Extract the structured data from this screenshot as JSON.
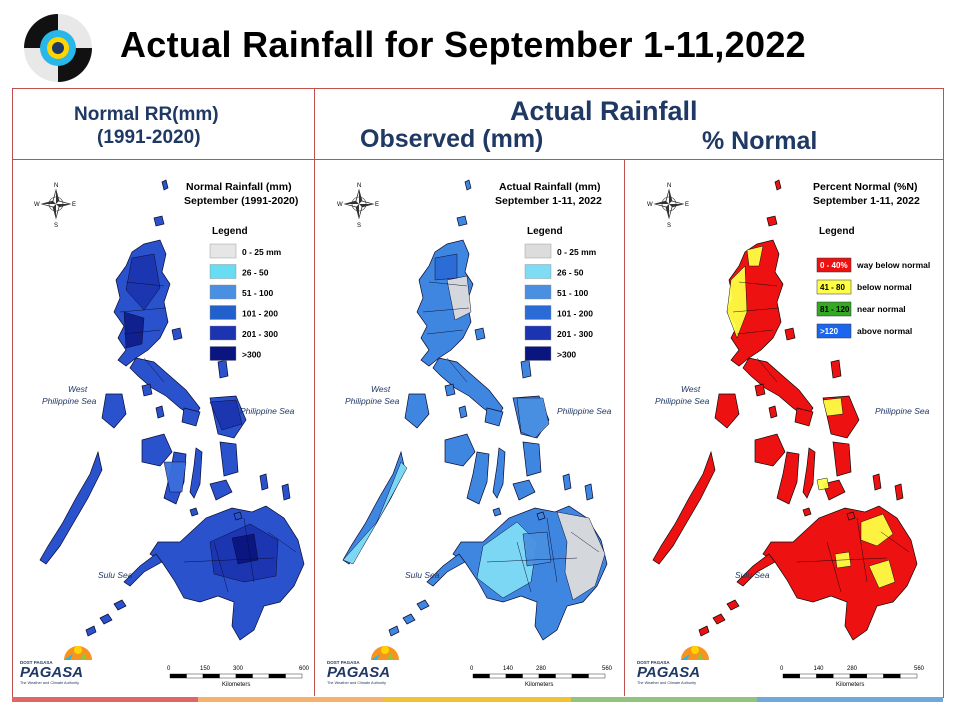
{
  "header": {
    "title": "Actual Rainfall for September 1-11,2022"
  },
  "column_headers": {
    "normal_line1": "Normal RR(mm)",
    "normal_line2": "(1991-2020)",
    "actual": "Actual Rainfall",
    "observed": "Observed (mm)",
    "percent_normal": "% Normal"
  },
  "panels": [
    {
      "title_line1": "Normal Rainfall (mm)",
      "title_line2": "September (1991-2020)",
      "legend_title": "Legend",
      "legend": [
        {
          "label": "0 - 25 mm",
          "color": "#e6e6e6"
        },
        {
          "label": "26 - 50",
          "color": "#66ddf2"
        },
        {
          "label": "51 - 100",
          "color": "#4a90e2"
        },
        {
          "label": "101 - 200",
          "color": "#2260cc"
        },
        {
          "label": "201 - 300",
          "color": "#1c34b0"
        },
        {
          "label": ">300",
          "color": "#0a1580"
        }
      ],
      "sea_west_1": "West",
      "sea_west_2": "Philippine Sea",
      "sea_east": "Philippine Sea",
      "sea_south": "Sulu Sea",
      "scale_ticks": [
        "0",
        "150",
        "300",
        "600"
      ],
      "scale_unit": "Kilometers"
    },
    {
      "title_line1": "Actual Rainfall (mm)",
      "title_line2": "September 1-11, 2022",
      "legend_title": "Legend",
      "legend": [
        {
          "label": "0 - 25 mm",
          "color": "#dcdcdc"
        },
        {
          "label": "26 - 50",
          "color": "#7fdcf5"
        },
        {
          "label": "51 - 100",
          "color": "#4a90e2"
        },
        {
          "label": "101 - 200",
          "color": "#2a6bd6"
        },
        {
          "label": "201 - 300",
          "color": "#1c34b0"
        },
        {
          "label": ">300",
          "color": "#0a1580"
        }
      ],
      "sea_west_1": "West",
      "sea_west_2": "Philippine Sea",
      "sea_east": "Philippine Sea",
      "sea_south": "Sulu Sea",
      "scale_ticks": [
        "0",
        "140",
        "280",
        "560"
      ],
      "scale_unit": "Kilometers"
    },
    {
      "title_line1": "Percent Normal (%N)",
      "title_line2": "September 1-11, 2022",
      "legend_title": "Legend",
      "legend": [
        {
          "label": "0 - 40%",
          "desc": "way below normal",
          "color": "#ee1111",
          "text_color": "#ffffff"
        },
        {
          "label": "41 - 80",
          "desc": "below normal",
          "color": "#ffff44",
          "text_color": "#000000"
        },
        {
          "label": "81 - 120",
          "desc": "near normal",
          "color": "#33aa22",
          "text_color": "#000000"
        },
        {
          "label": ">120",
          "desc": "above normal",
          "color": "#1a66ee",
          "text_color": "#ffffff"
        }
      ],
      "sea_west_1": "West",
      "sea_west_2": "Philippine Sea",
      "sea_east": "Philippine Sea",
      "sea_south": "Sulu Sea",
      "scale_ticks": [
        "0",
        "140",
        "280",
        "560"
      ],
      "scale_unit": "Kilometers"
    }
  ],
  "compass": {
    "n": "N",
    "s": "S",
    "e": "E",
    "w": "W"
  },
  "pagasa": {
    "top": "DOST PAGASA",
    "name": "PAGASA",
    "tagline": "The Weather and Climate Authority"
  },
  "colors": {
    "frame": "#c0504d",
    "header_text": "#1f3864",
    "bar": [
      "#e06666",
      "#f6b26b",
      "#f1c232",
      "#93c47d",
      "#6fa8dc"
    ]
  }
}
